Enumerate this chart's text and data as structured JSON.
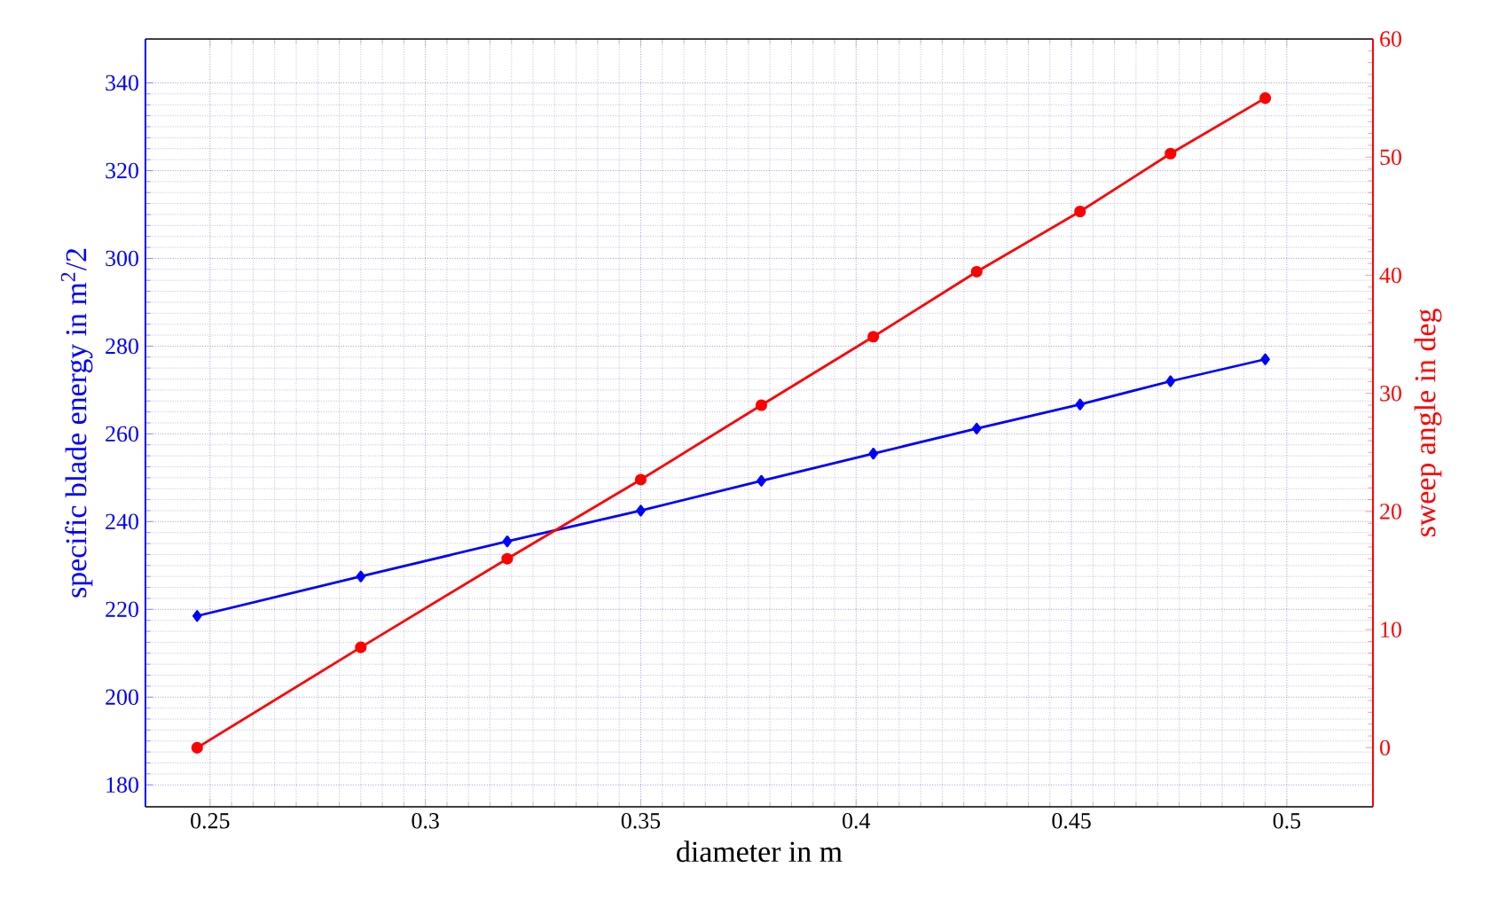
{
  "chart_data": {
    "type": "line",
    "xlabel": "diameter in m",
    "ylabel": "specific blade energy in m$^{2}$/2",
    "y2label": "sweep angle in deg",
    "x": [
      0.247,
      0.285,
      0.319,
      0.35,
      0.378,
      0.404,
      0.428,
      0.452,
      0.473,
      0.495
    ],
    "series": [
      {
        "color": "#0000ff",
        "marker": "diamond",
        "values": [
          218.5,
          227.5,
          235.5,
          242.5,
          249.3,
          255.5,
          261.2,
          266.7,
          272,
          277
        ]
      },
      {
        "color": "#ff0000",
        "marker": "circle",
        "axis": "y2",
        "values": [
          0,
          8.5,
          16,
          22.7,
          29,
          34.8,
          40.3,
          45.4,
          50.3,
          55
        ]
      }
    ],
    "xlim": [
      0.235,
      0.52
    ],
    "xticks": [
      0.25,
      0.3,
      0.35,
      0.4,
      0.45,
      0.5
    ],
    "ylim": [
      175,
      350
    ],
    "yticks": [
      180,
      200,
      220,
      240,
      260,
      280,
      300,
      320,
      340
    ],
    "y2lim": [
      -5,
      60
    ],
    "y2ticks": [
      0,
      10,
      20,
      30,
      40,
      50,
      60
    ],
    "grid": true,
    "line_style": "solid"
  }
}
